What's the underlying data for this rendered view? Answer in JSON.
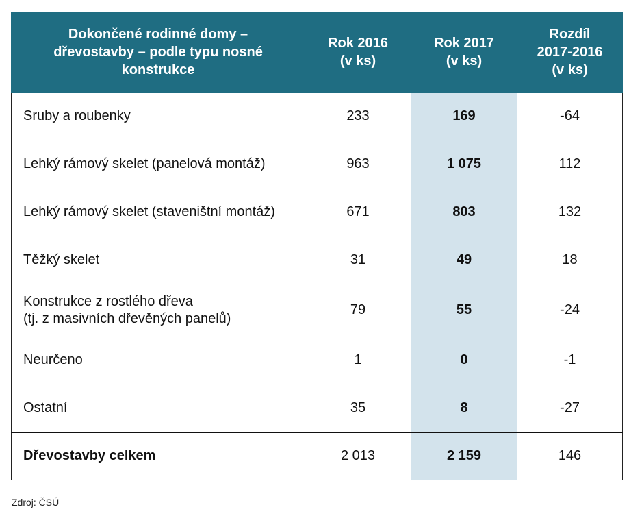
{
  "table": {
    "headers": {
      "col1_lines": [
        "Dokončené rodinné domy –",
        "dřevostavby – podle typu nosné",
        "konstrukce"
      ],
      "col2_lines": [
        "Rok 2016",
        "(v ks)"
      ],
      "col3_lines": [
        "Rok 2017",
        "(v ks)"
      ],
      "col4_lines": [
        "Rozdíl",
        "2017-2016",
        "(v ks)"
      ]
    },
    "rows": [
      {
        "label_lines": [
          "Sruby a roubenky"
        ],
        "y2016": "233",
        "y2017": "169",
        "diff": "-64"
      },
      {
        "label_lines": [
          "Lehký rámový skelet (panelová montáž)"
        ],
        "y2016": "963",
        "y2017": "1 075",
        "diff": "112"
      },
      {
        "label_lines": [
          "Lehký rámový skelet (staveništní montáž)"
        ],
        "y2016": "671",
        "y2017": "803",
        "diff": "132"
      },
      {
        "label_lines": [
          "Těžký skelet"
        ],
        "y2016": "31",
        "y2017": "49",
        "diff": "18"
      },
      {
        "label_lines": [
          "Konstrukce z rostlého dřeva",
          "(tj. z masivních dřevěných panelů)"
        ],
        "y2016": "79",
        "y2017": "55",
        "diff": "-24"
      },
      {
        "label_lines": [
          "Neurčeno"
        ],
        "y2016": "1",
        "y2017": "0",
        "diff": "-1"
      },
      {
        "label_lines": [
          "Ostatní"
        ],
        "y2016": "35",
        "y2017": "8",
        "diff": "-27"
      }
    ],
    "total": {
      "label": "Dřevostavby celkem",
      "y2016": "2 013",
      "y2017": "2 159",
      "diff": "146"
    }
  },
  "source": "Zdroj: ČSÚ",
  "colors": {
    "header_bg": "#1f6d82",
    "highlight_col_bg": "#d3e3ec"
  }
}
